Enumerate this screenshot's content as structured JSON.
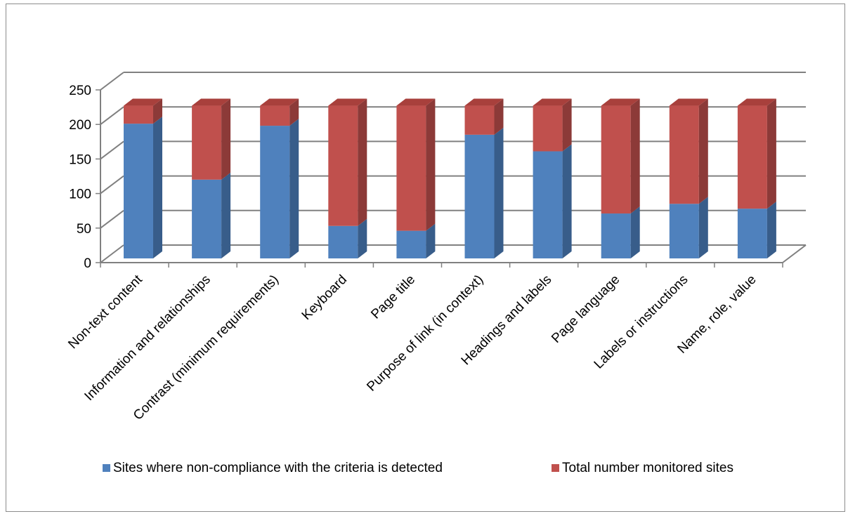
{
  "chart_data": {
    "type": "bar",
    "stacked": true,
    "style": "3d-stacked-column",
    "categories": [
      "Non-text content",
      "Information and relationships",
      "Contrast (minimum requirements)",
      "Keyboard",
      "Page title",
      "Purpose of link (in context)",
      "Headings and labels",
      "Page language",
      "Labels or instructions",
      "Name, role, value"
    ],
    "series": [
      {
        "name": "Sites where non-compliance with the criteria is detected",
        "color": "#4f81bd",
        "side_color": "#385d8a",
        "top_color": "#6b96cb",
        "values": [
          195,
          114,
          192,
          47,
          40,
          179,
          155,
          65,
          79,
          72
        ]
      },
      {
        "name": "Total number monitored sites",
        "color": "#c0504d",
        "side_color": "#8c3a38",
        "top_color": "#a8403c",
        "values": [
          26,
          107,
          29,
          174,
          181,
          42,
          66,
          156,
          142,
          149
        ]
      }
    ],
    "ylim": [
      0,
      250
    ],
    "yticks": [
      0,
      50,
      100,
      150,
      200,
      250
    ],
    "grid": true,
    "legend_position": "bottom",
    "title": "",
    "xlabel": "",
    "ylabel": ""
  }
}
